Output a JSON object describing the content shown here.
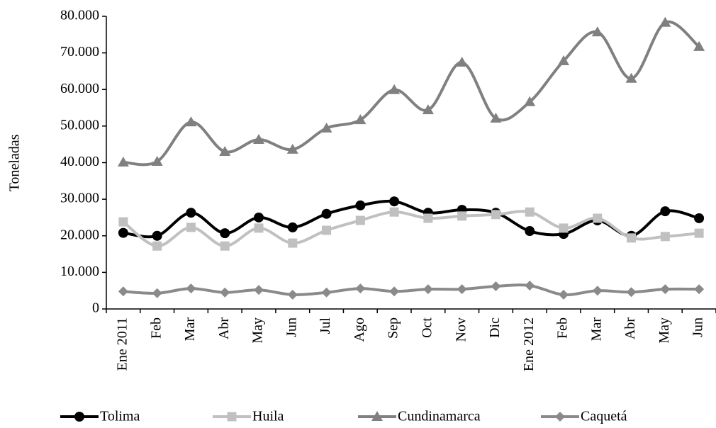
{
  "chart_data": {
    "type": "line",
    "y_label": "Toneladas",
    "categories": [
      "Ene 2011",
      "Feb",
      "Mar",
      "Abr",
      "May",
      "Jun",
      "Jul",
      "Ago",
      "Sep",
      "Oct",
      "Nov",
      "Dic",
      "Ene 2012",
      "Feb",
      "Mar",
      "Abr",
      "May",
      "Jun"
    ],
    "series": [
      {
        "name": "Tolima",
        "color": "#000000",
        "marker": "circle",
        "values": [
          20800,
          20000,
          26300,
          20700,
          25000,
          22300,
          26000,
          28300,
          29400,
          26300,
          27100,
          26300,
          21300,
          20500,
          24200,
          20000,
          26700,
          24800
        ]
      },
      {
        "name": "Huila",
        "color": "#c0c0c0",
        "marker": "square",
        "values": [
          23800,
          17200,
          22300,
          17200,
          22100,
          18000,
          21500,
          24200,
          26500,
          24800,
          25400,
          25800,
          26500,
          22100,
          24800,
          19400,
          19800,
          20700
        ]
      },
      {
        "name": "Cundinamarca",
        "color": "#808080",
        "marker": "triangle",
        "values": [
          40100,
          40300,
          51100,
          43000,
          46300,
          43600,
          49400,
          51700,
          59900,
          54400,
          67400,
          52100,
          56600,
          67800,
          75700,
          63000,
          78300,
          71700
        ]
      },
      {
        "name": "Caquetá",
        "color": "#8a8a8a",
        "marker": "diamond",
        "values": [
          4800,
          4300,
          5600,
          4500,
          5200,
          3900,
          4500,
          5600,
          4800,
          5400,
          5400,
          6200,
          6400,
          3900,
          5000,
          4600,
          5400,
          5400
        ]
      }
    ],
    "ylim": [
      0,
      80000
    ],
    "yticks": [
      0,
      {
        "value": 10000,
        "label": "10.000"
      },
      {
        "value": 20000,
        "label": "20.000"
      },
      {
        "value": 30000,
        "label": "30.000"
      },
      {
        "value": 40000,
        "label": "40.000"
      },
      {
        "value": 50000,
        "label": "50.000"
      },
      {
        "value": 60000,
        "label": "60.000"
      },
      {
        "value": 70000,
        "label": "70.000"
      },
      {
        "value": 80000,
        "label": "80.000"
      }
    ],
    "legend": "bottom",
    "smooth": true
  }
}
